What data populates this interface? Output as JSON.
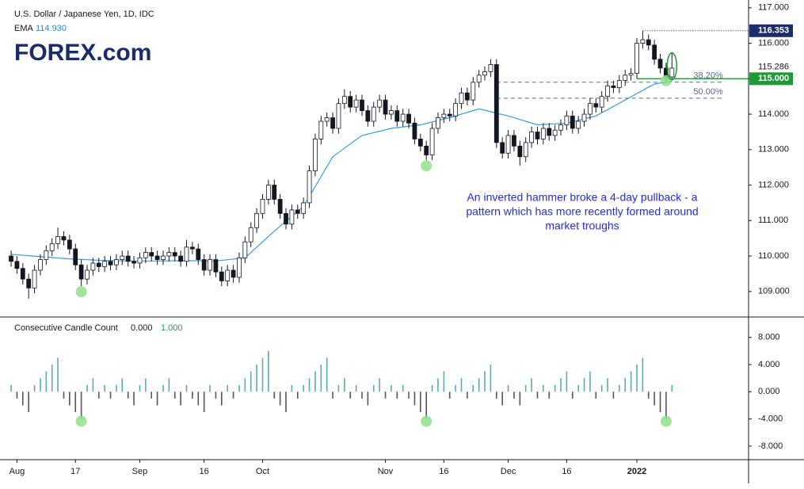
{
  "chart_data": {
    "type": "candlestick",
    "title": "U.S. Dollar / Japanese Yen, 1D, IDC",
    "logo": "FOREX.com",
    "ema_label": "EMA",
    "ema_value": {
      "value": 114.93,
      "label": "114.930"
    },
    "ylim": [
      108.28,
      117.22
    ],
    "xlim": [
      -1.9,
      126.1
    ],
    "yticks": [
      {
        "value": 117,
        "label": "117.000"
      },
      {
        "value": 116,
        "label": "116.000"
      },
      {
        "value": 115,
        "label": "115.000"
      },
      {
        "value": 114,
        "label": "114.000"
      },
      {
        "value": 113,
        "label": "113.000"
      },
      {
        "value": 112,
        "label": "112.000"
      },
      {
        "value": 111,
        "label": "111.000"
      },
      {
        "value": 110,
        "label": "110.000"
      },
      {
        "value": 109,
        "label": "109.000"
      }
    ],
    "xticks": [
      {
        "value": 1,
        "label": "Aug"
      },
      {
        "value": 11,
        "label": "17"
      },
      {
        "value": 22,
        "label": "Sep"
      },
      {
        "value": 33,
        "label": "16"
      },
      {
        "value": 43,
        "label": "Oct"
      },
      {
        "value": 64,
        "label": "Nov"
      },
      {
        "value": 74,
        "label": "16"
      },
      {
        "value": 85,
        "label": "Dec"
      },
      {
        "value": 95,
        "label": "16"
      },
      {
        "value": 107,
        "label": "2022"
      }
    ],
    "colors": {
      "up": "#ffffff",
      "down": "#131722",
      "outline": "#131722",
      "ema": "#3d9be0",
      "hist_up": "#5aaea6",
      "hist_down": "#555555",
      "marker": "#8ee08a",
      "support": "#1f9a3a",
      "high_box": "#1a2c6b",
      "fib": "#5a6a9a",
      "annotation": "#2b2bd6"
    },
    "ohlc": [
      [
        110.0,
        110.15,
        109.7,
        109.85
      ],
      [
        109.85,
        110.0,
        109.5,
        109.65
      ],
      [
        109.65,
        109.8,
        109.2,
        109.35
      ],
      [
        109.35,
        109.5,
        108.8,
        109.1
      ],
      [
        109.1,
        109.75,
        108.95,
        109.6
      ],
      [
        109.6,
        110.05,
        109.45,
        109.9
      ],
      [
        109.9,
        110.3,
        109.75,
        110.15
      ],
      [
        110.15,
        110.5,
        110.0,
        110.35
      ],
      [
        110.35,
        110.8,
        110.2,
        110.55
      ],
      [
        110.55,
        110.7,
        110.3,
        110.45
      ],
      [
        110.45,
        110.6,
        110.05,
        110.2
      ],
      [
        110.2,
        110.35,
        109.6,
        109.75
      ],
      [
        109.75,
        109.9,
        109.15,
        109.35
      ],
      [
        109.35,
        109.75,
        109.2,
        109.6
      ],
      [
        109.6,
        109.95,
        109.45,
        109.8
      ],
      [
        109.8,
        109.95,
        109.55,
        109.7
      ],
      [
        109.7,
        110.0,
        109.55,
        109.85
      ],
      [
        109.85,
        110.0,
        109.6,
        109.75
      ],
      [
        109.75,
        110.05,
        109.6,
        109.9
      ],
      [
        109.9,
        110.15,
        109.75,
        110.0
      ],
      [
        110.0,
        110.15,
        109.7,
        109.85
      ],
      [
        109.85,
        110.0,
        109.65,
        109.8
      ],
      [
        109.8,
        110.1,
        109.65,
        109.95
      ],
      [
        109.95,
        110.25,
        109.8,
        110.1
      ],
      [
        110.1,
        110.25,
        109.85,
        110.0
      ],
      [
        110.0,
        110.15,
        109.75,
        109.9
      ],
      [
        109.9,
        110.15,
        109.75,
        110.0
      ],
      [
        110.0,
        110.25,
        109.85,
        110.1
      ],
      [
        110.1,
        110.25,
        109.85,
        110.0
      ],
      [
        110.0,
        110.15,
        109.7,
        109.85
      ],
      [
        109.85,
        110.45,
        109.7,
        110.25
      ],
      [
        110.25,
        110.4,
        110.05,
        110.2
      ],
      [
        110.2,
        110.35,
        109.75,
        109.9
      ],
      [
        109.9,
        110.05,
        109.45,
        109.6
      ],
      [
        109.6,
        110.05,
        109.45,
        109.9
      ],
      [
        109.9,
        110.05,
        109.4,
        109.55
      ],
      [
        109.55,
        109.7,
        109.15,
        109.3
      ],
      [
        109.3,
        109.75,
        109.15,
        109.6
      ],
      [
        109.6,
        109.75,
        109.25,
        109.4
      ],
      [
        109.4,
        110.1,
        109.25,
        109.95
      ],
      [
        109.95,
        110.55,
        109.8,
        110.4
      ],
      [
        110.4,
        110.95,
        110.25,
        110.8
      ],
      [
        110.8,
        111.35,
        110.65,
        111.2
      ],
      [
        111.2,
        111.75,
        111.05,
        111.6
      ],
      [
        111.6,
        112.15,
        111.45,
        112.0
      ],
      [
        112.0,
        112.15,
        111.45,
        111.6
      ],
      [
        111.6,
        111.75,
        111.05,
        111.2
      ],
      [
        111.2,
        111.35,
        110.75,
        110.9
      ],
      [
        110.9,
        111.45,
        110.75,
        111.3
      ],
      [
        111.3,
        111.45,
        111.05,
        111.2
      ],
      [
        111.2,
        111.65,
        111.05,
        111.5
      ],
      [
        111.5,
        112.55,
        111.35,
        112.4
      ],
      [
        112.4,
        113.45,
        112.25,
        113.3
      ],
      [
        113.3,
        113.95,
        113.15,
        113.8
      ],
      [
        113.8,
        114.05,
        113.65,
        113.9
      ],
      [
        113.9,
        114.05,
        113.45,
        113.6
      ],
      [
        113.6,
        114.45,
        113.45,
        114.3
      ],
      [
        114.3,
        114.7,
        114.15,
        114.5
      ],
      [
        114.5,
        114.65,
        114.05,
        114.2
      ],
      [
        114.2,
        114.55,
        114.05,
        114.4
      ],
      [
        114.4,
        114.55,
        113.95,
        114.1
      ],
      [
        114.1,
        114.25,
        113.65,
        113.8
      ],
      [
        113.8,
        114.35,
        113.65,
        114.2
      ],
      [
        114.2,
        114.55,
        114.05,
        114.4
      ],
      [
        114.4,
        114.55,
        113.85,
        114.0
      ],
      [
        114.0,
        114.25,
        113.85,
        114.1
      ],
      [
        114.1,
        114.25,
        113.65,
        113.8
      ],
      [
        113.8,
        114.15,
        113.65,
        114.0
      ],
      [
        114.0,
        114.15,
        113.6,
        113.75
      ],
      [
        113.75,
        113.9,
        113.15,
        113.3
      ],
      [
        113.3,
        113.45,
        112.95,
        113.1
      ],
      [
        113.1,
        113.25,
        112.7,
        112.85
      ],
      [
        112.85,
        113.75,
        112.7,
        113.6
      ],
      [
        113.6,
        114.05,
        113.45,
        113.9
      ],
      [
        113.9,
        114.15,
        113.75,
        114.0
      ],
      [
        114.0,
        114.15,
        113.8,
        113.95
      ],
      [
        113.95,
        114.45,
        113.8,
        114.3
      ],
      [
        114.3,
        114.75,
        114.15,
        114.6
      ],
      [
        114.6,
        114.75,
        114.25,
        114.4
      ],
      [
        114.4,
        115.05,
        114.25,
        114.9
      ],
      [
        114.9,
        115.25,
        114.75,
        115.1
      ],
      [
        115.1,
        115.35,
        114.95,
        115.2
      ],
      [
        115.2,
        115.55,
        115.05,
        115.4
      ],
      [
        115.4,
        115.55,
        113.05,
        113.2
      ],
      [
        113.2,
        113.35,
        112.75,
        112.9
      ],
      [
        112.9,
        113.55,
        112.75,
        113.4
      ],
      [
        113.4,
        113.55,
        112.95,
        113.1
      ],
      [
        113.1,
        113.25,
        112.55,
        112.8
      ],
      [
        112.8,
        113.35,
        112.65,
        113.2
      ],
      [
        113.2,
        113.65,
        113.05,
        113.5
      ],
      [
        113.5,
        113.65,
        113.15,
        113.3
      ],
      [
        113.3,
        113.75,
        113.15,
        113.6
      ],
      [
        113.6,
        113.75,
        113.25,
        113.4
      ],
      [
        113.4,
        113.7,
        113.25,
        113.55
      ],
      [
        113.55,
        113.85,
        113.4,
        113.7
      ],
      [
        113.7,
        114.1,
        113.55,
        113.95
      ],
      [
        113.95,
        114.1,
        113.45,
        113.6
      ],
      [
        113.6,
        113.95,
        113.45,
        113.8
      ],
      [
        113.8,
        114.15,
        113.65,
        114.0
      ],
      [
        114.0,
        114.45,
        113.85,
        114.3
      ],
      [
        114.3,
        114.45,
        114.05,
        114.2
      ],
      [
        114.2,
        114.65,
        114.05,
        114.5
      ],
      [
        114.5,
        114.95,
        114.35,
        114.8
      ],
      [
        114.8,
        114.95,
        114.6,
        114.75
      ],
      [
        114.75,
        115.1,
        114.6,
        114.95
      ],
      [
        114.95,
        115.25,
        114.8,
        115.1
      ],
      [
        115.1,
        115.3,
        114.95,
        115.15
      ],
      [
        115.15,
        116.15,
        115.0,
        116.0
      ],
      [
        116.0,
        116.35,
        115.85,
        116.1
      ],
      [
        116.1,
        116.25,
        115.8,
        115.95
      ],
      [
        115.95,
        116.1,
        115.4,
        115.55
      ],
      [
        115.55,
        115.7,
        115.15,
        115.3
      ],
      [
        115.3,
        115.45,
        114.9,
        115.05
      ],
      [
        115.05,
        115.75,
        114.95,
        115.3
      ]
    ],
    "ema": {
      "x": [
        0,
        5,
        10,
        15,
        20,
        25,
        30,
        35,
        40,
        45,
        50,
        55,
        60,
        65,
        70,
        75,
        80,
        85,
        90,
        95,
        100,
        105,
        110,
        113
      ],
      "values": [
        110.05,
        109.98,
        109.92,
        109.88,
        109.86,
        109.86,
        109.87,
        109.86,
        109.95,
        110.7,
        111.4,
        112.8,
        113.4,
        113.6,
        113.7,
        113.9,
        114.15,
        113.95,
        113.7,
        113.75,
        113.95,
        114.4,
        114.85,
        114.93
      ]
    },
    "levels": {
      "high": {
        "value": 116.353,
        "label": "116.353"
      },
      "last": {
        "value": 115.286,
        "label": "115.286"
      },
      "support": {
        "value": 115.0,
        "label": "115.000"
      }
    },
    "fib_levels": [
      {
        "value": 114.9,
        "label": "38.20%"
      },
      {
        "value": 114.45,
        "label": "50.00%"
      }
    ],
    "markers": [
      12,
      71,
      112
    ],
    "annotation": [
      "An inverted hammer broke a 4-day pullback - a",
      "pattern which has more recently formed around",
      "market troughs"
    ],
    "lower": {
      "title": "Consecutive Candle Count",
      "legend_values": [
        {
          "value": 0,
          "label": "0.000"
        },
        {
          "value": 1,
          "label": "1.000"
        }
      ],
      "ylim": [
        -10,
        11
      ],
      "yticks": [
        {
          "value": 8,
          "label": "8.000"
        },
        {
          "value": 4,
          "label": "4.000"
        },
        {
          "value": 0,
          "label": "0.000"
        },
        {
          "value": -4,
          "label": "-4.000"
        },
        {
          "value": -8,
          "label": "-8.000"
        }
      ],
      "values": [
        1,
        -1,
        -2,
        -3,
        1,
        2,
        3,
        4,
        5,
        -1,
        -2,
        -3,
        -4,
        1,
        2,
        -1,
        1,
        -1,
        1,
        2,
        -1,
        -2,
        1,
        2,
        -1,
        -2,
        1,
        2,
        -1,
        -2,
        1,
        -1,
        -2,
        -3,
        1,
        -1,
        -2,
        1,
        -1,
        1,
        2,
        3,
        4,
        5,
        6,
        -1,
        -2,
        -3,
        1,
        -1,
        1,
        2,
        3,
        4,
        5,
        -1,
        1,
        2,
        -1,
        1,
        -1,
        -2,
        1,
        2,
        -1,
        1,
        -1,
        1,
        -1,
        -2,
        -3,
        -4,
        1,
        2,
        3,
        -1,
        1,
        2,
        -1,
        1,
        2,
        3,
        4,
        -1,
        -2,
        1,
        -1,
        -2,
        1,
        2,
        -1,
        1,
        -1,
        1,
        2,
        3,
        -1,
        1,
        2,
        3,
        -1,
        1,
        2,
        -1,
        1,
        2,
        3,
        4,
        5,
        -1,
        -2,
        -3,
        -4,
        1
      ]
    }
  }
}
